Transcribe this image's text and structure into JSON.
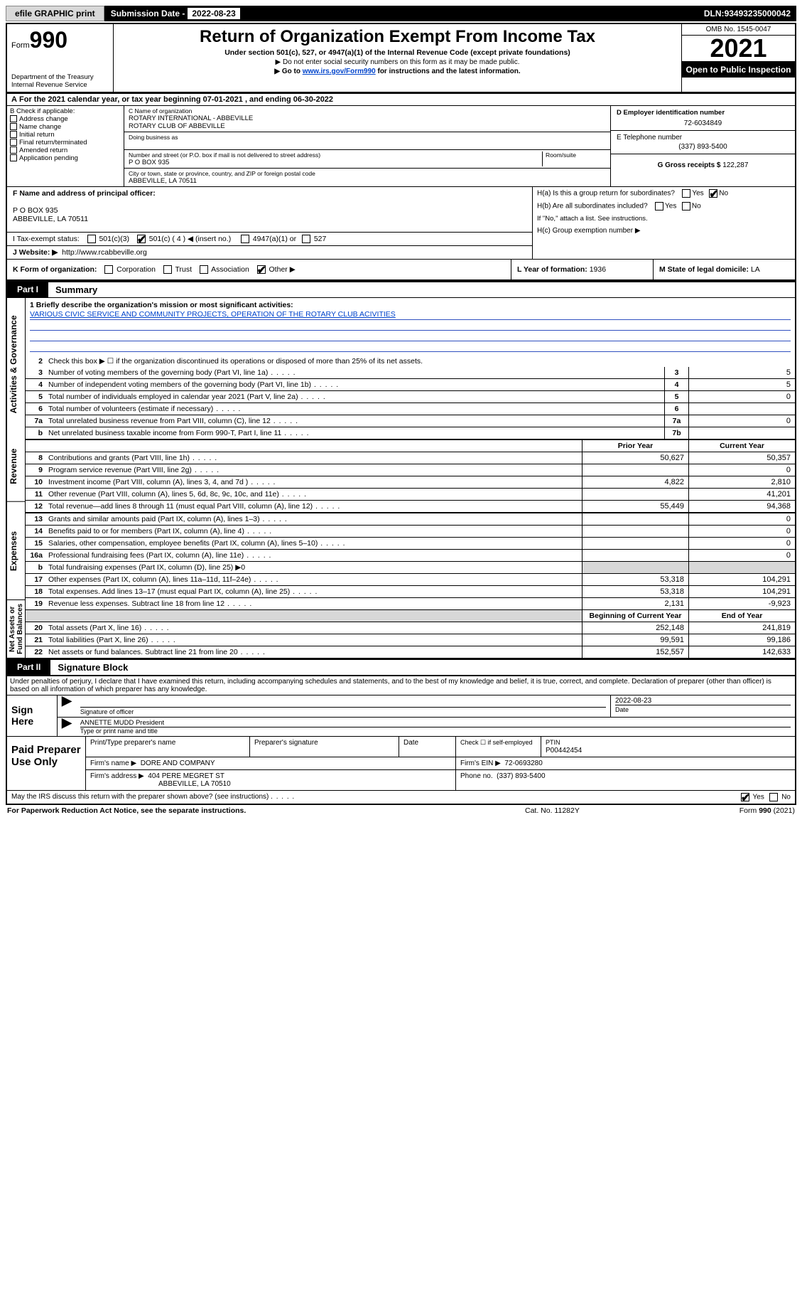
{
  "top": {
    "efile": "efile GRAPHIC print",
    "submission_label": "Submission Date - ",
    "submission_date": "2022-08-23",
    "dln_label": "DLN: ",
    "dln": "93493235000042"
  },
  "header": {
    "form_prefix": "Form",
    "form_num": "990",
    "dept": "Department of the Treasury",
    "irs": "Internal Revenue Service",
    "title": "Return of Organization Exempt From Income Tax",
    "subtitle": "Under section 501(c), 527, or 4947(a)(1) of the Internal Revenue Code (except private foundations)",
    "note1": "▶ Do not enter social security numbers on this form as it may be made public.",
    "note2_pre": "▶ Go to ",
    "note2_link": "www.irs.gov/Form990",
    "note2_post": " for instructions and the latest information.",
    "omb": "OMB No. 1545-0047",
    "year": "2021",
    "inspection": "Open to Public Inspection"
  },
  "lineA": "For the 2021 calendar year, or tax year beginning 07-01-2021   , and ending 06-30-2022",
  "boxB": {
    "label": "B Check if applicable:",
    "items": [
      "Address change",
      "Name change",
      "Initial return",
      "Final return/terminated",
      "Amended return",
      "Application pending"
    ]
  },
  "boxC": {
    "name_lbl": "C Name of organization",
    "name1": "ROTARY INTERNATIONAL - ABBEVILLE",
    "name2": "ROTARY CLUB OF ABBEVILLE",
    "dba_lbl": "Doing business as",
    "street_lbl": "Number and street (or P.O. box if mail is not delivered to street address)",
    "room_lbl": "Room/suite",
    "street": "P O BOX 935",
    "city_lbl": "City or town, state or province, country, and ZIP or foreign postal code",
    "city": "ABBEVILLE, LA  70511"
  },
  "boxD": {
    "lbl": "D Employer identification number",
    "val": "72-6034849"
  },
  "boxE": {
    "lbl": "E Telephone number",
    "val": "(337) 893-5400"
  },
  "boxG": {
    "lbl": "G Gross receipts $",
    "val": "122,287"
  },
  "boxF": {
    "lbl": "F  Name and address of principal officer:",
    "addr1": "P O BOX 935",
    "addr2": "ABBEVILLE, LA  70511"
  },
  "boxH": {
    "ha": "H(a)  Is this a group return for subordinates?",
    "hb": "H(b)  Are all subordinates included?",
    "hbnote": "If \"No,\" attach a list. See instructions.",
    "hc": "H(c)  Group exemption number ▶",
    "yes": "Yes",
    "no": "No"
  },
  "boxI": {
    "lbl": "I   Tax-exempt status:",
    "c3": "501(c)(3)",
    "c4a": "501(c) ( 4 ) ◀ (insert no.)",
    "a1": "4947(a)(1) or",
    "527": "527"
  },
  "boxJ": {
    "lbl": "J   Website: ▶",
    "val": "http://www.rcabbeville.org"
  },
  "boxK": {
    "lbl": "K Form of organization:",
    "opts": [
      "Corporation",
      "Trust",
      "Association",
      "Other ▶"
    ]
  },
  "boxL": {
    "lbl": "L Year of formation: ",
    "val": "1936"
  },
  "boxM": {
    "lbl": "M State of legal domicile: ",
    "val": "LA"
  },
  "part1": {
    "tab": "Part I",
    "title": "Summary"
  },
  "mission": {
    "lbl": "1   Briefly describe the organization's mission or most significant activities:",
    "text": "VARIOUS CIVIC SERVICE AND COMMUNITY PROJECTS, OPERATION OF THE ROTARY CLUB ACIVITIES"
  },
  "lines_gov": [
    {
      "n": "2",
      "d": "Check this box ▶ ☐  if the organization discontinued its operations or disposed of more than 25% of its net assets."
    },
    {
      "n": "3",
      "d": "Number of voting members of the governing body (Part VI, line 1a)",
      "box": "3",
      "v": "5"
    },
    {
      "n": "4",
      "d": "Number of independent voting members of the governing body (Part VI, line 1b)",
      "box": "4",
      "v": "5"
    },
    {
      "n": "5",
      "d": "Total number of individuals employed in calendar year 2021 (Part V, line 2a)",
      "box": "5",
      "v": "0"
    },
    {
      "n": "6",
      "d": "Total number of volunteers (estimate if necessary)",
      "box": "6",
      "v": ""
    },
    {
      "n": "7a",
      "d": "Total unrelated business revenue from Part VIII, column (C), line 12",
      "box": "7a",
      "v": "0"
    },
    {
      "n": "b",
      "d": "Net unrelated business taxable income from Form 990-T, Part I, line 11",
      "box": "7b",
      "v": ""
    }
  ],
  "yrhdr": {
    "prior": "Prior Year",
    "current": "Current Year"
  },
  "lines_rev": [
    {
      "n": "8",
      "d": "Contributions and grants (Part VIII, line 1h)",
      "p": "50,627",
      "c": "50,357"
    },
    {
      "n": "9",
      "d": "Program service revenue (Part VIII, line 2g)",
      "p": "",
      "c": "0"
    },
    {
      "n": "10",
      "d": "Investment income (Part VIII, column (A), lines 3, 4, and 7d )",
      "p": "4,822",
      "c": "2,810"
    },
    {
      "n": "11",
      "d": "Other revenue (Part VIII, column (A), lines 5, 6d, 8c, 9c, 10c, and 11e)",
      "p": "",
      "c": "41,201"
    },
    {
      "n": "12",
      "d": "Total revenue—add lines 8 through 11 (must equal Part VIII, column (A), line 12)",
      "p": "55,449",
      "c": "94,368"
    }
  ],
  "lines_exp": [
    {
      "n": "13",
      "d": "Grants and similar amounts paid (Part IX, column (A), lines 1–3)",
      "p": "",
      "c": "0"
    },
    {
      "n": "14",
      "d": "Benefits paid to or for members (Part IX, column (A), line 4)",
      "p": "",
      "c": "0"
    },
    {
      "n": "15",
      "d": "Salaries, other compensation, employee benefits (Part IX, column (A), lines 5–10)",
      "p": "",
      "c": "0"
    },
    {
      "n": "16a",
      "d": "Professional fundraising fees (Part IX, column (A), line 11e)",
      "p": "",
      "c": "0"
    },
    {
      "n": "b",
      "d": "Total fundraising expenses (Part IX, column (D), line 25) ▶0",
      "grey": true
    },
    {
      "n": "17",
      "d": "Other expenses (Part IX, column (A), lines 11a–11d, 11f–24e)",
      "p": "53,318",
      "c": "104,291"
    },
    {
      "n": "18",
      "d": "Total expenses. Add lines 13–17 (must equal Part IX, column (A), line 25)",
      "p": "53,318",
      "c": "104,291"
    },
    {
      "n": "19",
      "d": "Revenue less expenses. Subtract line 18 from line 12",
      "p": "2,131",
      "c": "-9,923"
    }
  ],
  "nahdr": {
    "beg": "Beginning of Current Year",
    "end": "End of Year"
  },
  "lines_na": [
    {
      "n": "20",
      "d": "Total assets (Part X, line 16)",
      "p": "252,148",
      "c": "241,819"
    },
    {
      "n": "21",
      "d": "Total liabilities (Part X, line 26)",
      "p": "99,591",
      "c": "99,186"
    },
    {
      "n": "22",
      "d": "Net assets or fund balances. Subtract line 21 from line 20",
      "p": "152,557",
      "c": "142,633"
    }
  ],
  "side": {
    "gov": "Activities & Governance",
    "rev": "Revenue",
    "exp": "Expenses",
    "na": "Net Assets or Fund Balances"
  },
  "part2": {
    "tab": "Part II",
    "title": "Signature Block"
  },
  "penalties": "Under penalties of perjury, I declare that I have examined this return, including accompanying schedules and statements, and to the best of my knowledge and belief, it is true, correct, and complete. Declaration of preparer (other than officer) is based on all information of which preparer has any knowledge.",
  "sign": {
    "here": "Sign Here",
    "sig_lbl": "Signature of officer",
    "date_lbl": "Date",
    "date": "2022-08-23",
    "name": "ANNETTE MUDD President",
    "name_lbl": "Type or print name and title"
  },
  "prep": {
    "title": "Paid Preparer Use Only",
    "h_name": "Print/Type preparer's name",
    "h_sig": "Preparer's signature",
    "h_date": "Date",
    "h_check": "Check ☐ if self-employed",
    "h_ptin": "PTIN",
    "ptin": "P00442454",
    "firm_lbl": "Firm's name    ▶",
    "firm": "DORE AND COMPANY",
    "ein_lbl": "Firm's EIN ▶",
    "ein": "72-0693280",
    "addr_lbl": "Firm's address ▶",
    "addr1": "404 PERE MEGRET ST",
    "addr2": "ABBEVILLE, LA  70510",
    "phone_lbl": "Phone no.",
    "phone": "(337) 893-5400"
  },
  "discuss": {
    "q": "May the IRS discuss this return with the preparer shown above? (see instructions)",
    "yes": "Yes",
    "no": "No"
  },
  "footer": {
    "pra": "For Paperwork Reduction Act Notice, see the separate instructions.",
    "cat": "Cat. No. 11282Y",
    "form": "Form 990 (2021)"
  }
}
